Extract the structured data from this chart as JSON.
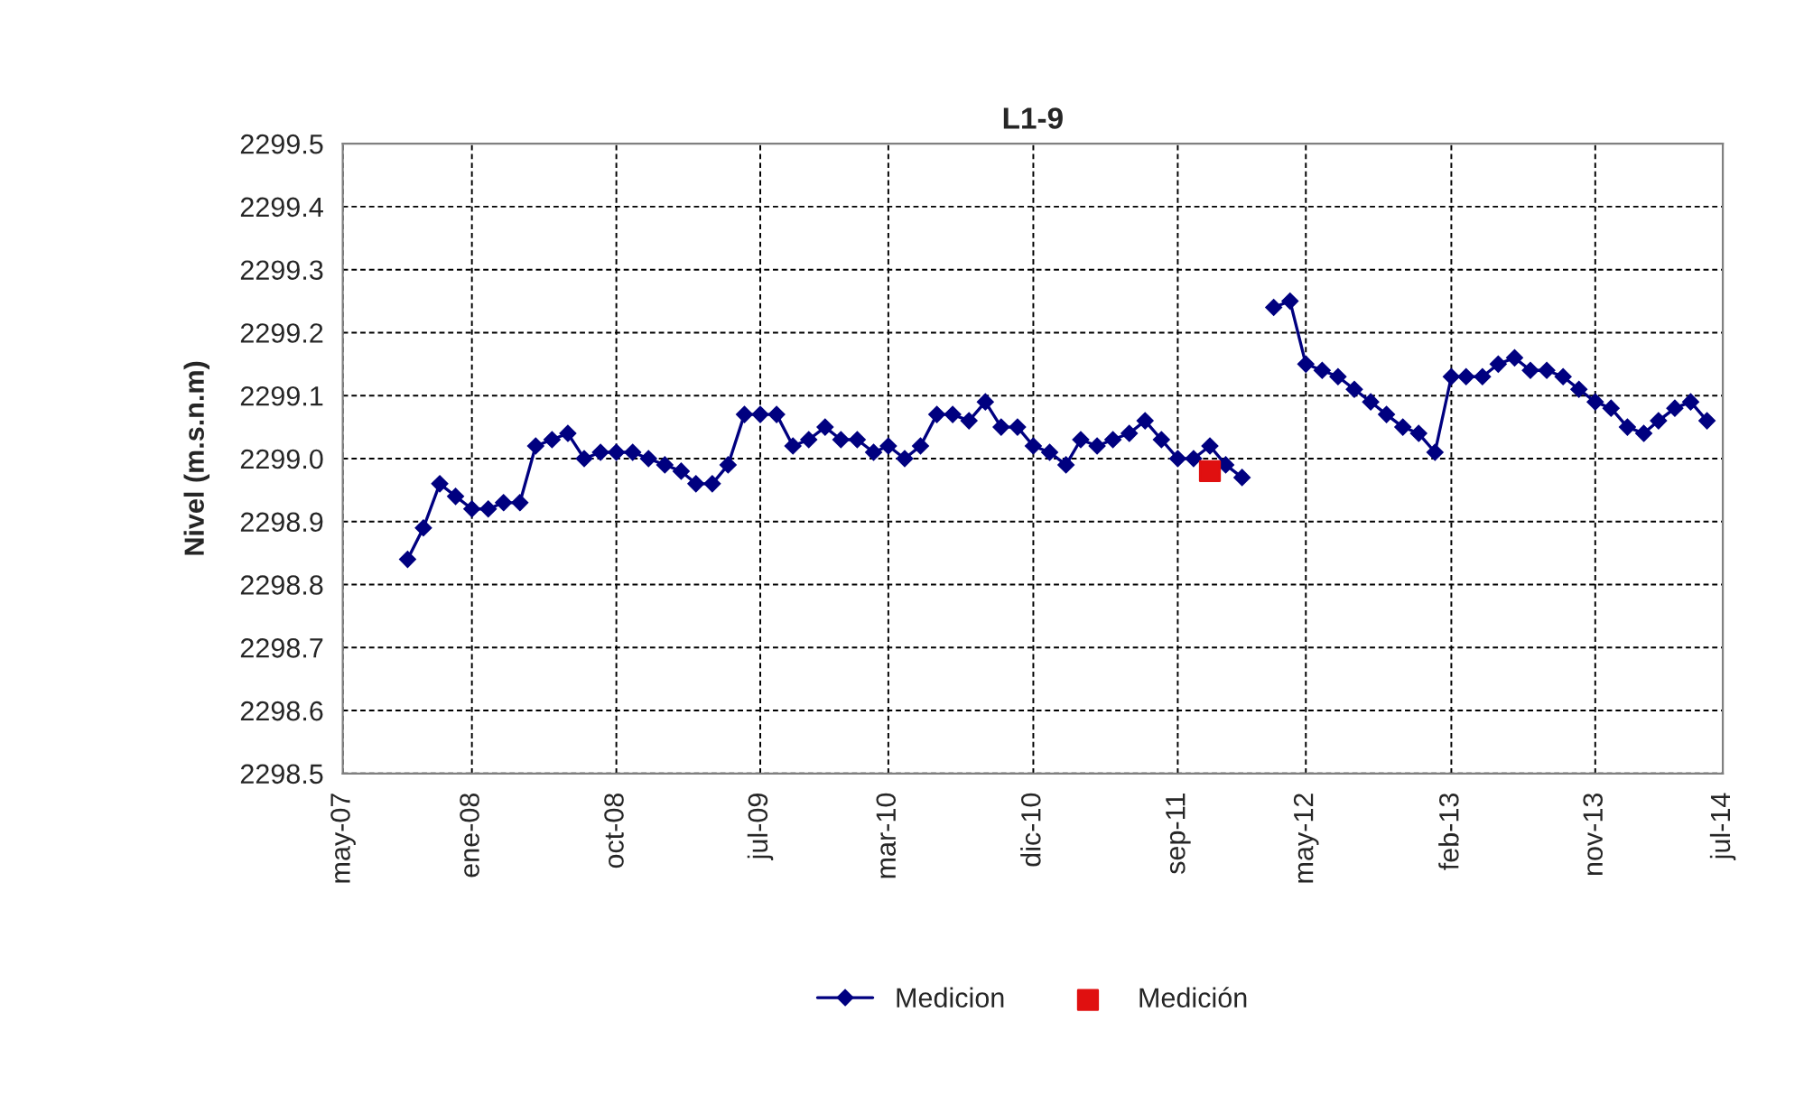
{
  "chart_data": {
    "type": "line",
    "title": "L1-9",
    "ylabel": "Nivel (m.s.n.m)",
    "x": [
      "2007-09",
      "2007-10",
      "2007-11",
      "2007-12",
      "2008-01",
      "2008-02",
      "2008-03",
      "2008-04",
      "2008-05",
      "2008-06",
      "2008-07",
      "2008-08",
      "2008-09",
      "2008-10",
      "2008-11",
      "2008-12",
      "2009-01",
      "2009-02",
      "2009-03",
      "2009-04",
      "2009-05",
      "2009-06",
      "2009-07",
      "2009-08",
      "2009-09",
      "2009-10",
      "2009-11",
      "2009-12",
      "2010-01",
      "2010-02",
      "2010-03",
      "2010-04",
      "2010-05",
      "2010-06",
      "2010-07",
      "2010-08",
      "2010-09",
      "2010-10",
      "2010-11",
      "2010-12",
      "2011-01",
      "2011-02",
      "2011-03",
      "2011-04",
      "2011-05",
      "2011-06",
      "2011-07",
      "2011-08",
      "2011-09",
      "2011-10",
      "2011-11",
      "2011-12",
      "2012-01",
      "2012-02",
      "2012-03",
      "2012-04",
      "2012-05",
      "2012-06",
      "2012-07",
      "2012-08",
      "2012-09",
      "2012-10",
      "2012-11",
      "2012-12",
      "2013-01",
      "2013-02",
      "2013-03",
      "2013-04",
      "2013-05",
      "2013-06",
      "2013-07",
      "2013-08",
      "2013-09",
      "2013-10",
      "2013-11",
      "2013-12",
      "2014-01",
      "2014-02",
      "2014-03",
      "2014-04",
      "2014-05",
      "2014-06"
    ],
    "series": [
      {
        "name": "Medicion",
        "color": "#000080",
        "marker": "diamond",
        "values": [
          2298.84,
          2298.89,
          2298.96,
          2298.94,
          2298.92,
          2298.92,
          2298.93,
          2298.93,
          2299.02,
          2299.03,
          2299.04,
          2299.0,
          2299.01,
          2299.01,
          2299.01,
          2299.0,
          2298.99,
          2298.98,
          2298.96,
          2298.96,
          2298.99,
          2299.07,
          2299.07,
          2299.07,
          2299.02,
          2299.03,
          2299.05,
          2299.03,
          2299.03,
          2299.01,
          2299.02,
          2299.0,
          2299.02,
          2299.07,
          2299.07,
          2299.06,
          2299.09,
          2299.05,
          2299.05,
          2299.02,
          2299.01,
          2298.99,
          2299.03,
          2299.02,
          2299.03,
          2299.04,
          2299.06,
          2299.03,
          2299.0,
          2299.0,
          2299.02,
          2298.99,
          2298.97,
          null,
          2299.24,
          2299.25,
          2299.15,
          2299.14,
          2299.13,
          2299.11,
          2299.09,
          2299.07,
          2299.05,
          2299.04,
          2299.01,
          2299.13,
          2299.13,
          2299.13,
          2299.15,
          2299.16,
          2299.14,
          2299.14,
          2299.13,
          2299.11,
          2299.09,
          2299.08,
          2299.05,
          2299.04,
          2299.06,
          2299.08,
          2299.09,
          2299.06
        ]
      },
      {
        "name": "Medición",
        "type": "scatter",
        "color": "#e01010",
        "marker": "square",
        "x": [
          "2011-11"
        ],
        "values": [
          2298.98
        ]
      }
    ],
    "xlim": [
      "2007-05-01",
      "2014-07-01"
    ],
    "xticks": [
      {
        "value": "2007-05-01",
        "label": "may-07"
      },
      {
        "value": "2008-01-01",
        "label": "ene-08"
      },
      {
        "value": "2008-10-01",
        "label": "oct-08"
      },
      {
        "value": "2009-07-01",
        "label": "jul-09"
      },
      {
        "value": "2010-03-01",
        "label": "mar-10"
      },
      {
        "value": "2010-12-01",
        "label": "dic-10"
      },
      {
        "value": "2011-09-01",
        "label": "sep-11"
      },
      {
        "value": "2012-05-01",
        "label": "may-12"
      },
      {
        "value": "2013-02-01",
        "label": "feb-13"
      },
      {
        "value": "2013-11-01",
        "label": "nov-13"
      },
      {
        "value": "2014-07-01",
        "label": "jul-14"
      }
    ],
    "ylim": [
      2298.5,
      2299.5
    ],
    "yticks": [
      2298.5,
      2298.6,
      2298.7,
      2298.8,
      2298.9,
      {
        "value": 2299,
        "label": "2299.0"
      },
      2299.1,
      2299.2,
      2299.3,
      2299.4,
      2299.5
    ],
    "grid": true,
    "legend": "bottom"
  }
}
